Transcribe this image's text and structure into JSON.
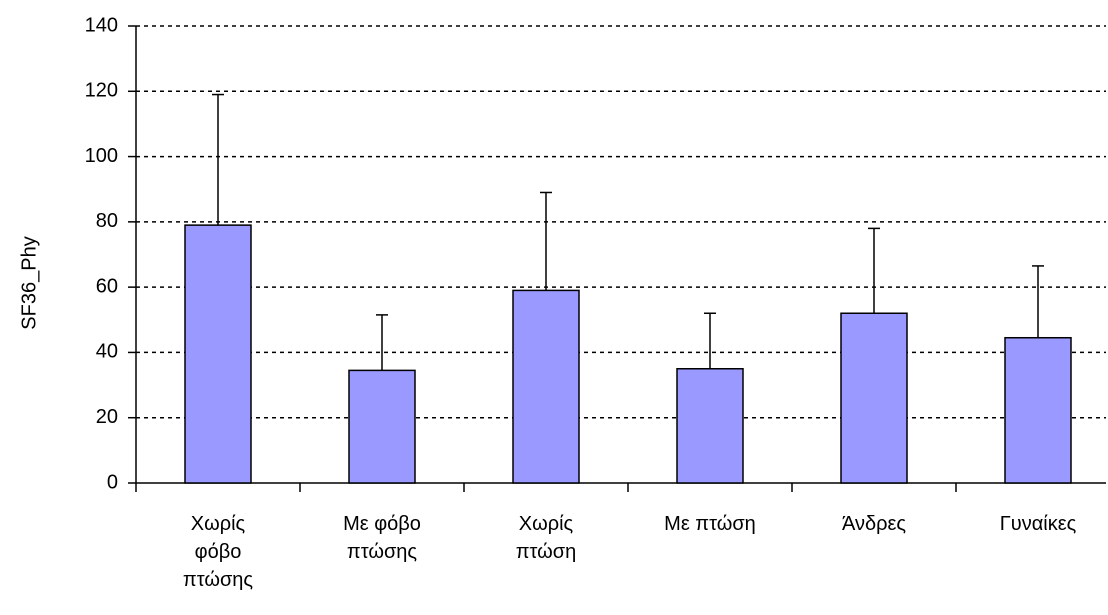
{
  "chart_data": {
    "type": "bar",
    "y_label": "SF36_Phy",
    "categories": [
      "Χωρίς\nφόβο\nπτώσης",
      "Με φόβο\nπτώσης",
      "Χωρίς\nπτώση",
      "Με πτώση",
      "Άνδρες",
      "Γυναίκες"
    ],
    "values": [
      79,
      34.5,
      59,
      35,
      52,
      44.5
    ],
    "errors": [
      40,
      17,
      30,
      17,
      26,
      22
    ],
    "color": "#9999ff",
    "ylim": [
      0,
      140
    ],
    "yticks": [
      0,
      20,
      40,
      60,
      80,
      100,
      120,
      140
    ],
    "grid": true
  }
}
